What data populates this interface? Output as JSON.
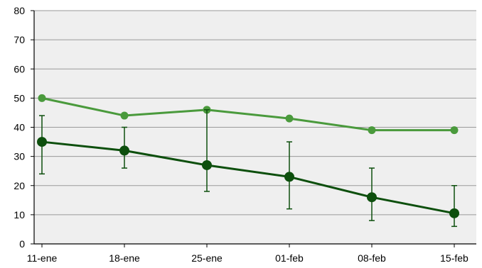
{
  "chart_data": {
    "type": "line",
    "title": "",
    "xlabel": "",
    "ylabel": "",
    "categories": [
      "11-ene",
      "18-ene",
      "25-ene",
      "01-feb",
      "08-feb",
      "15-feb"
    ],
    "ylim": [
      0,
      80
    ],
    "yticks": [
      0,
      10,
      20,
      30,
      40,
      50,
      60,
      70,
      80
    ],
    "grid": "horizontal",
    "legend": "none",
    "plot_background": "#efefef",
    "gridline_color": "#9a9a9a",
    "series": [
      {
        "color": "#4a9a3c",
        "values": [
          50,
          44,
          46,
          43,
          39,
          39
        ]
      },
      {
        "color": "#0d4f0d",
        "values": [
          35,
          32,
          27,
          23,
          16,
          10.5
        ],
        "error_low": [
          24,
          26,
          18,
          12,
          8,
          6
        ],
        "error_high": [
          44,
          40,
          46,
          35,
          26,
          20
        ]
      }
    ]
  }
}
